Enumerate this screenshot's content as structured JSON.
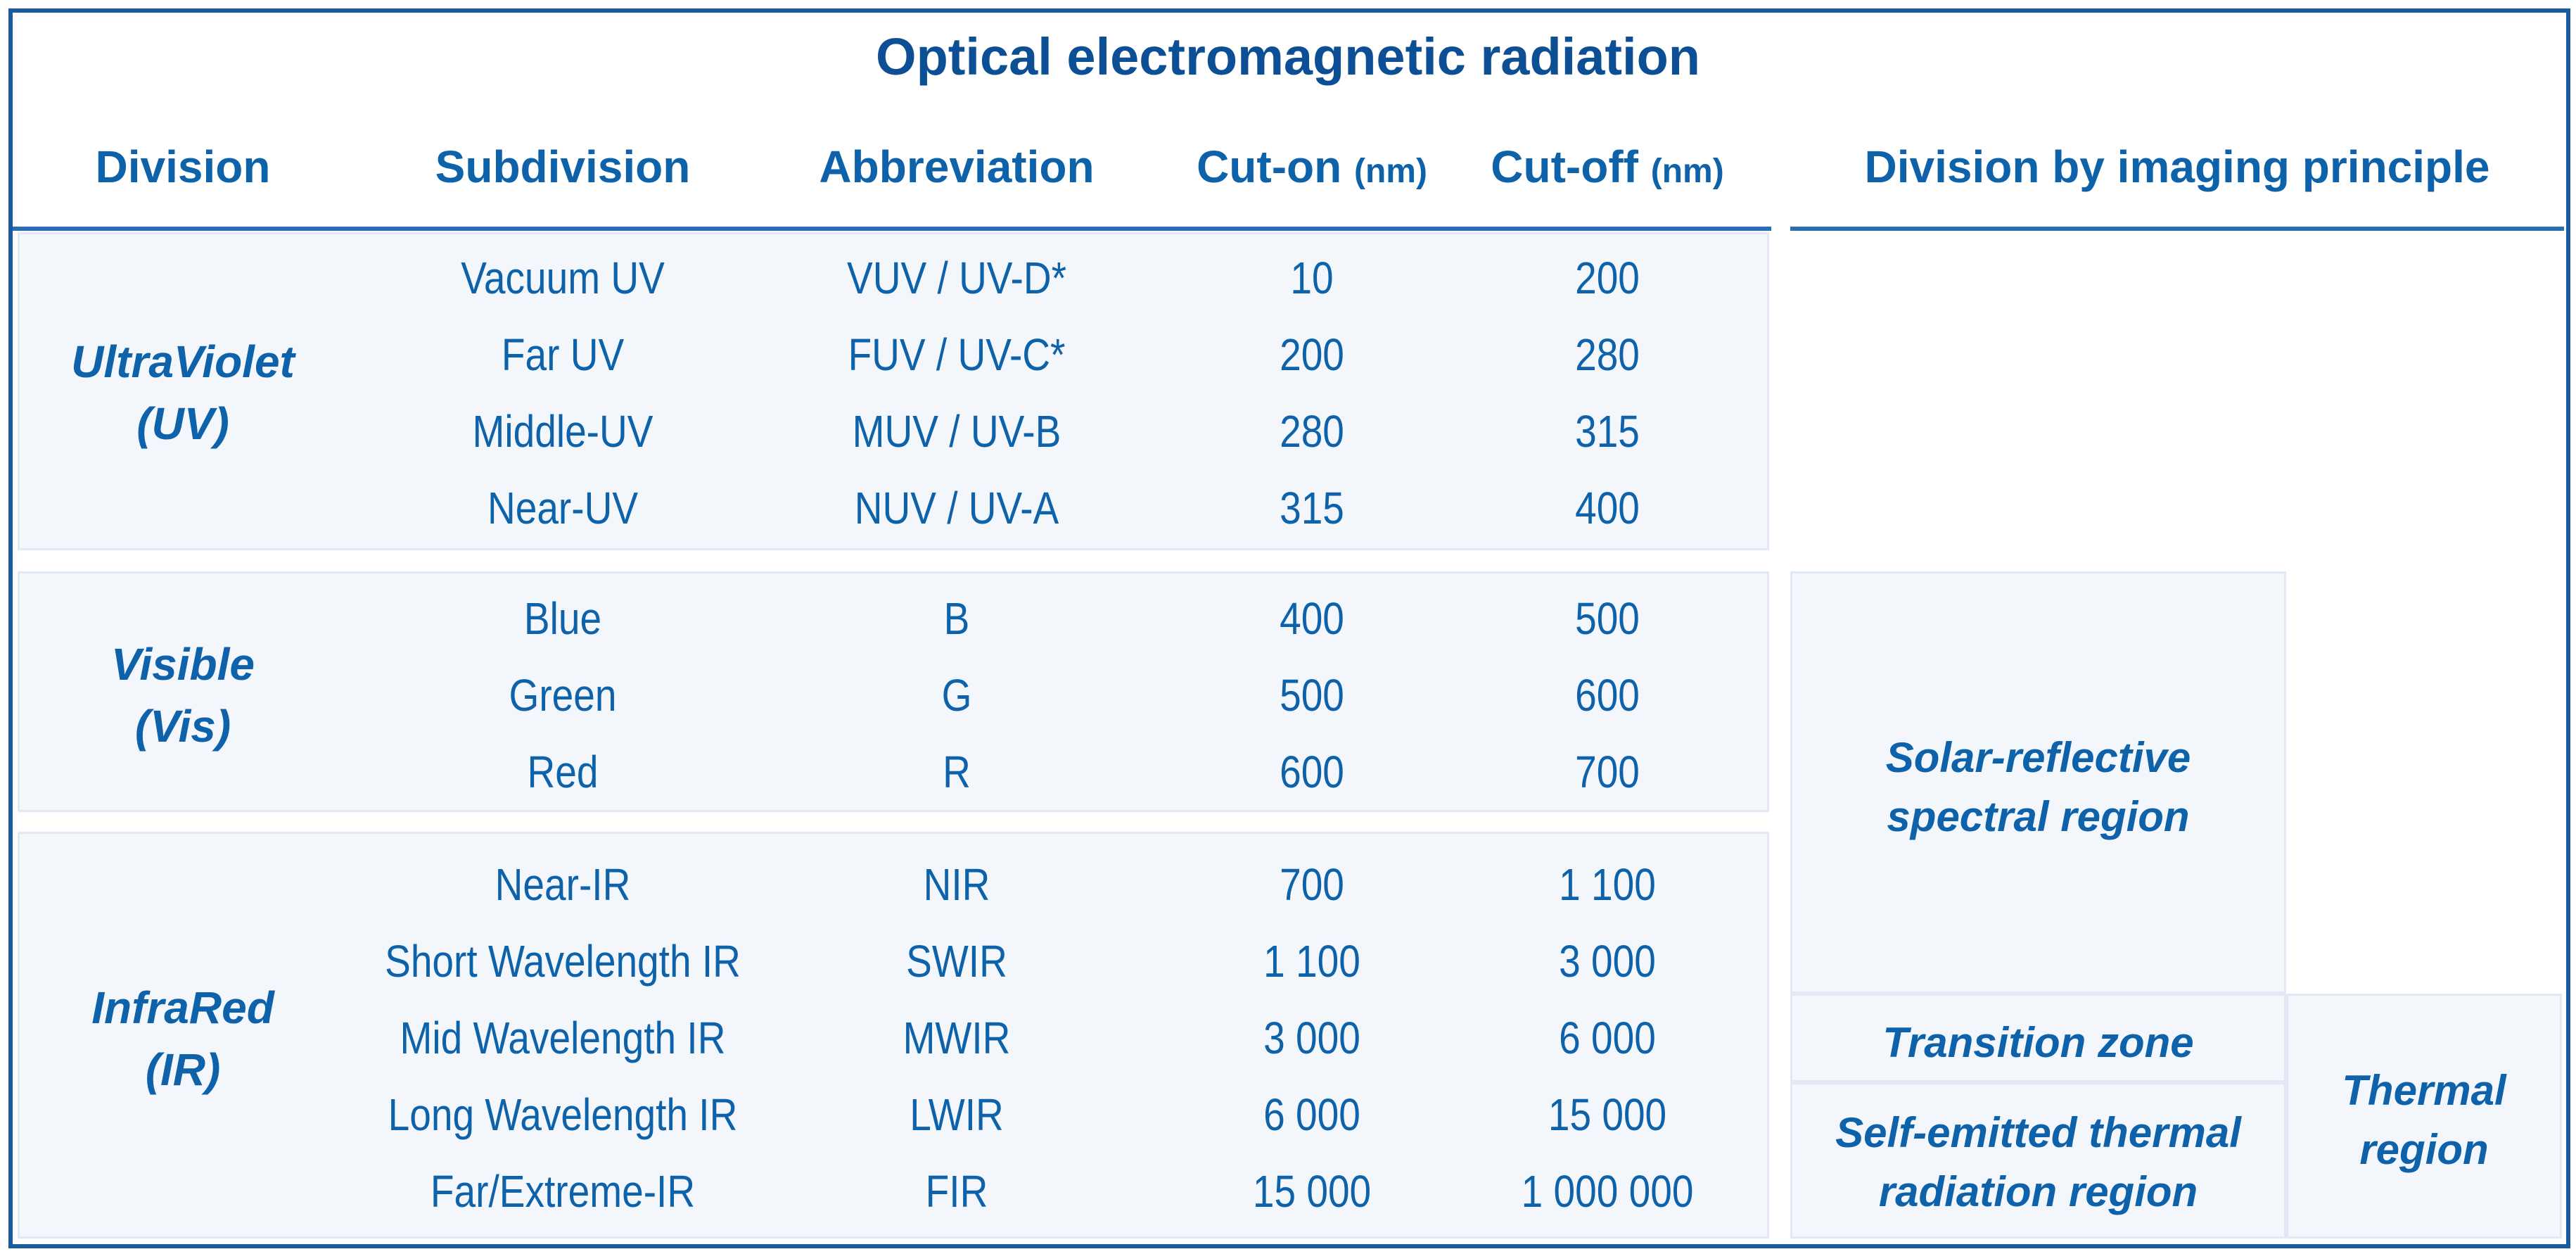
{
  "title": "Optical electromagnetic radiation",
  "headers": {
    "division": "Division",
    "subdivision": "Subdivision",
    "abbreviation": "Abbreviation",
    "cut_on": "Cut-on",
    "cut_off": "Cut-off",
    "unit": "(nm)",
    "imaging": "Division by imaging principle"
  },
  "groups": [
    {
      "name_line1": "UltraViolet",
      "name_line2": "(UV)",
      "rows": [
        {
          "sub": "Vacuum UV",
          "abbr": "VUV / UV-D*",
          "on": "10",
          "off": "200"
        },
        {
          "sub": "Far UV",
          "abbr": "FUV / UV-C*",
          "on": "200",
          "off": "280"
        },
        {
          "sub": "Middle-UV",
          "abbr": "MUV / UV-B",
          "on": "280",
          "off": "315"
        },
        {
          "sub": "Near-UV",
          "abbr": "NUV / UV-A",
          "on": "315",
          "off": "400"
        }
      ]
    },
    {
      "name_line1": "Visible",
      "name_line2": "(Vis)",
      "rows": [
        {
          "sub": "Blue",
          "abbr": "B",
          "on": "400",
          "off": "500"
        },
        {
          "sub": "Green",
          "abbr": "G",
          "on": "500",
          "off": "600"
        },
        {
          "sub": "Red",
          "abbr": "R",
          "on": "600",
          "off": "700"
        }
      ]
    },
    {
      "name_line1": "InfraRed",
      "name_line2": "(IR)",
      "rows": [
        {
          "sub": "Near-IR",
          "abbr": "NIR",
          "on": "700",
          "off": "1 100"
        },
        {
          "sub": "Short Wavelength IR",
          "abbr": "SWIR",
          "on": "1 100",
          "off": "3 000"
        },
        {
          "sub": "Mid Wavelength IR",
          "abbr": "MWIR",
          "on": "3 000",
          "off": "6 000"
        },
        {
          "sub": "Long Wavelength IR",
          "abbr": "LWIR",
          "on": "6 000",
          "off": "15 000"
        },
        {
          "sub": "Far/Extreme-IR",
          "abbr": "FIR",
          "on": "15 000",
          "off": "1 000 000"
        }
      ]
    }
  ],
  "imaging": {
    "solar_line1": "Solar-reflective",
    "solar_line2": "spectral region",
    "transition": "Transition zone",
    "self_line1": "Self-emitted thermal",
    "self_line2": "radiation region",
    "thermal_line1": "Thermal",
    "thermal_line2": "region"
  }
}
